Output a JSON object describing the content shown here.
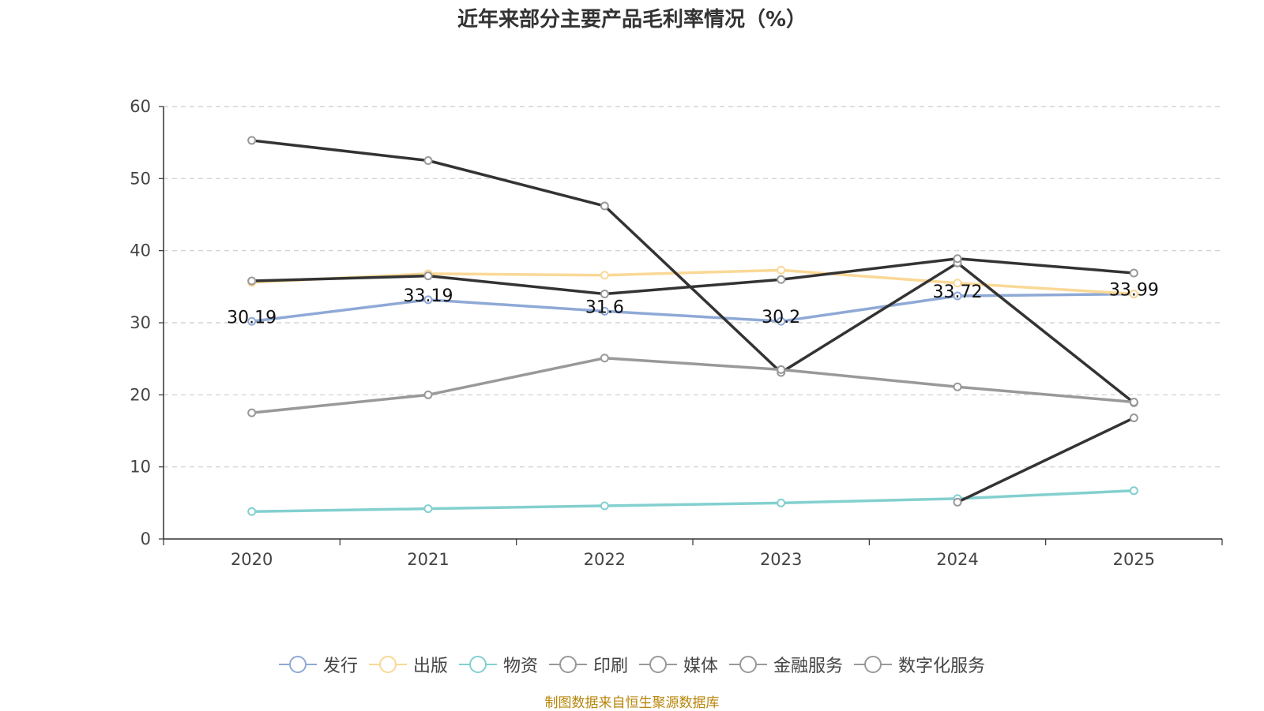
{
  "chart_data": {
    "type": "line",
    "title": "近年来部分主要产品毛利率情况（%）",
    "categories": [
      "2020",
      "2021",
      "2022",
      "2023",
      "2024",
      "2025"
    ],
    "ylim": [
      0,
      60
    ],
    "yticks": [
      0,
      10,
      20,
      30,
      40,
      50,
      60
    ],
    "grid": true,
    "legend_position": "bottom",
    "series": [
      {
        "name": "发行",
        "color": "#8fa9d6",
        "values": [
          30.19,
          33.19,
          31.6,
          30.2,
          33.72,
          33.99
        ],
        "labels": [
          "30.19",
          "33.19",
          "31.6",
          "30.2",
          "33.72",
          "33.99"
        ]
      },
      {
        "name": "出版",
        "color": "#fad896",
        "values": [
          35.6,
          36.8,
          36.6,
          37.3,
          35.5,
          34.0
        ],
        "labels": null
      },
      {
        "name": "物资",
        "color": "#83d0cf",
        "values": [
          3.8,
          4.2,
          4.6,
          5.0,
          5.6,
          6.7
        ],
        "labels": null
      },
      {
        "name": "印刷",
        "color": "#333333",
        "values": [
          55.3,
          52.5,
          46.2,
          23.1,
          38.3,
          18.9
        ],
        "labels": null
      },
      {
        "name": "媒体",
        "color": "#999999",
        "values": [
          17.5,
          20.0,
          25.1,
          23.5,
          21.1,
          19.0
        ],
        "labels": null
      },
      {
        "name": "金融服务",
        "color": "#333333",
        "values": [
          35.8,
          36.5,
          34.0,
          36.0,
          38.9,
          36.9
        ],
        "labels": null
      },
      {
        "name": "数字化服务",
        "color": "#333333",
        "values": [
          null,
          null,
          null,
          null,
          5.1,
          16.8
        ],
        "labels": null
      }
    ]
  },
  "legend_colors": [
    "#8fa9d6",
    "#fad896",
    "#83d0cf",
    "#999999",
    "#999999",
    "#999999",
    "#999999"
  ],
  "source": "制图数据来自恒生聚源数据库"
}
